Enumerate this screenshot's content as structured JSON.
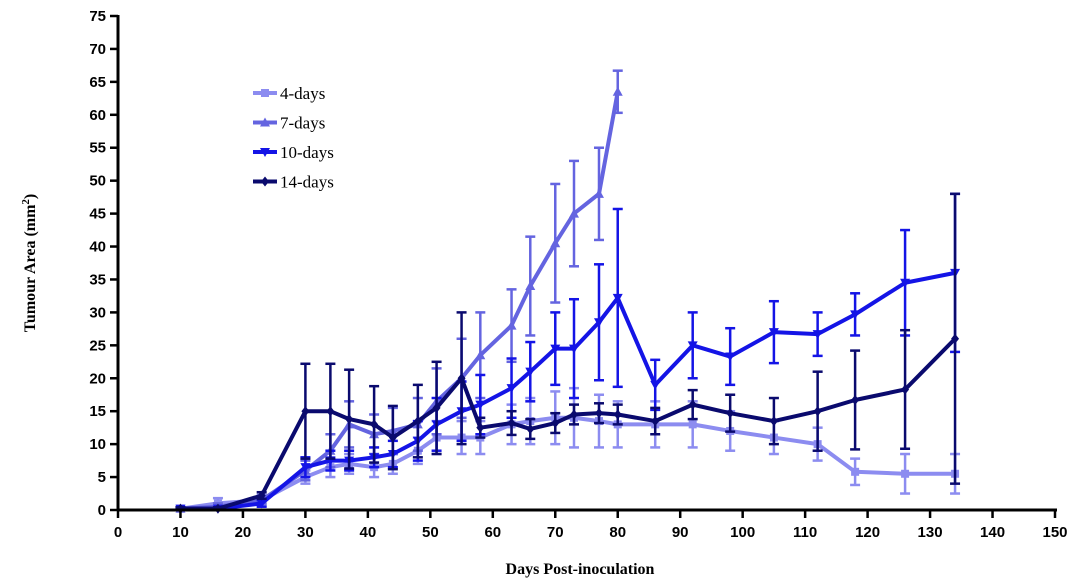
{
  "chart_data": {
    "type": "line",
    "title": "",
    "xlabel": "Days Post-inoculation",
    "ylabel": "Tumour Area (mm",
    "ylabel_sup": "2",
    "ylabel_close": ")",
    "xlim": [
      0,
      150
    ],
    "ylim": [
      0,
      75
    ],
    "xticks": [
      0,
      10,
      20,
      30,
      40,
      50,
      60,
      70,
      80,
      90,
      100,
      110,
      120,
      130,
      140,
      150
    ],
    "yticks": [
      0,
      5,
      10,
      15,
      20,
      25,
      30,
      35,
      40,
      45,
      50,
      55,
      60,
      65,
      70,
      75
    ],
    "grid": false,
    "legend_position": "upper-left",
    "series": [
      {
        "name": "4-days",
        "color": "#8c8cf0",
        "marker": "square",
        "x": [
          10,
          16,
          23,
          30,
          34,
          37,
          41,
          44,
          48,
          51,
          55,
          58,
          63,
          66,
          70,
          73,
          77,
          80,
          86,
          92,
          98,
          105,
          112,
          118,
          126,
          134
        ],
        "y": [
          0.2,
          1.0,
          1.5,
          5.0,
          6.5,
          7.0,
          6.5,
          7.0,
          9.0,
          11.0,
          11.0,
          11.0,
          13.0,
          13.5,
          14.0,
          14.0,
          13.5,
          13.0,
          13.0,
          13.0,
          12.0,
          11.0,
          10.0,
          5.8,
          5.5,
          5.5
        ],
        "err": [
          0.3,
          0.8,
          0.8,
          1.0,
          1.5,
          1.5,
          1.5,
          1.5,
          2.0,
          2.5,
          2.5,
          2.5,
          3.0,
          3.5,
          4.0,
          4.5,
          4.0,
          3.5,
          3.5,
          3.5,
          3.0,
          2.5,
          2.5,
          2.0,
          3.0,
          3.0
        ]
      },
      {
        "name": "7-days",
        "color": "#6464e0",
        "marker": "triangle-up",
        "x": [
          10,
          16,
          23,
          30,
          34,
          37,
          41,
          44,
          48,
          51,
          55,
          58,
          63,
          66,
          70,
          73,
          77,
          80
        ],
        "y": [
          0.2,
          0.5,
          1.5,
          6.0,
          9.0,
          13.0,
          11.5,
          12.0,
          13.0,
          16.5,
          20.0,
          23.5,
          28.0,
          34.0,
          40.5,
          45.0,
          48.0,
          63.5
        ],
        "err": [
          0.2,
          0.5,
          0.5,
          1.5,
          2.5,
          3.5,
          3.0,
          3.5,
          4.0,
          5.0,
          6.0,
          6.5,
          5.5,
          7.5,
          9.0,
          8.0,
          7.0,
          3.2
        ]
      },
      {
        "name": "10-days",
        "color": "#1414e6",
        "marker": "triangle-down",
        "x": [
          10,
          16,
          23,
          30,
          34,
          37,
          41,
          44,
          48,
          51,
          55,
          58,
          63,
          66,
          70,
          73,
          77,
          80,
          86,
          92,
          98,
          105,
          112,
          118,
          126,
          134
        ],
        "y": [
          0.2,
          0.2,
          1.0,
          6.5,
          7.5,
          7.5,
          8.0,
          8.5,
          10.5,
          13.0,
          15.0,
          16.0,
          18.5,
          21.0,
          24.5,
          24.5,
          28.5,
          32.2,
          19.0,
          25.0,
          23.3,
          27.0,
          26.7,
          29.7,
          34.5,
          36.0
        ],
        "err": [
          0.2,
          0.2,
          0.5,
          1.5,
          1.5,
          1.5,
          1.5,
          2.0,
          3.0,
          4.0,
          4.5,
          4.5,
          4.5,
          4.5,
          5.5,
          7.5,
          8.8,
          13.5,
          3.8,
          5.0,
          4.3,
          4.7,
          3.3,
          3.2,
          8.0,
          12.0
        ]
      },
      {
        "name": "14-days",
        "color": "#0a0a6e",
        "marker": "diamond",
        "x": [
          10,
          16,
          23,
          30,
          34,
          37,
          41,
          44,
          48,
          51,
          55,
          58,
          63,
          66,
          70,
          73,
          77,
          80,
          86,
          92,
          98,
          105,
          112,
          118,
          126,
          134
        ],
        "y": [
          0.2,
          0.2,
          2.2,
          15.0,
          15.0,
          13.8,
          13.0,
          11.0,
          13.5,
          15.5,
          20.0,
          12.5,
          13.2,
          12.3,
          13.2,
          14.5,
          14.7,
          14.5,
          13.5,
          16.0,
          14.7,
          13.5,
          15.0,
          16.7,
          18.3,
          26.0
        ],
        "err": [
          0.2,
          0.2,
          0.5,
          7.2,
          7.2,
          7.5,
          5.8,
          4.8,
          5.5,
          7.0,
          10.0,
          1.5,
          1.8,
          1.5,
          1.5,
          1.5,
          1.5,
          1.5,
          2.0,
          2.2,
          2.8,
          3.5,
          6.0,
          7.5,
          9.0,
          22.0
        ]
      }
    ]
  }
}
